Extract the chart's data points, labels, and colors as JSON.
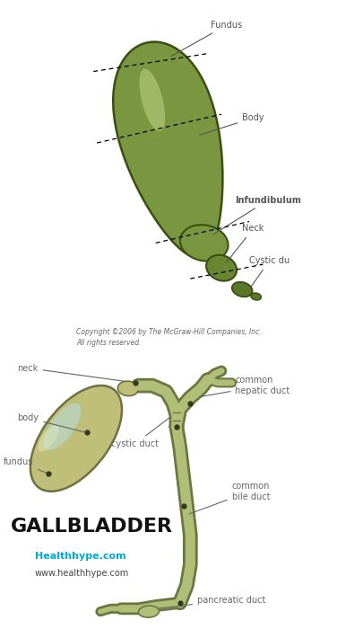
{
  "bg_color": "#ffffff",
  "fig1": {
    "copyright": "Copyright ©2006 by The McGraw-Hill Companies, Inc.\nAll rights reserved.",
    "gb_fill": "#7a9640",
    "gb_edge": "#3a5010",
    "gb_highlight": "#a8bf68",
    "neck_fill": "#6a8630",
    "cystic_fill": "#5a7628",
    "label_color": "#555555",
    "label_fs": 7
  },
  "fig2": {
    "gb_fill": "#c0bf7a",
    "gb_edge": "#707040",
    "gb_highlight": "#d8e0a0",
    "gb_blue": "#b8d8c8",
    "duct_fill": "#b0be78",
    "duct_edge": "#6a7840",
    "dot_color": "#303820",
    "label_color": "#666666",
    "label_fs": 7,
    "title": "GALLBLADDER",
    "title_fs": 16,
    "website": "Healthhype.com",
    "website2": "www.healthhype.com",
    "website_color": "#00aacc",
    "website_fs": 8,
    "website2_fs": 7
  }
}
